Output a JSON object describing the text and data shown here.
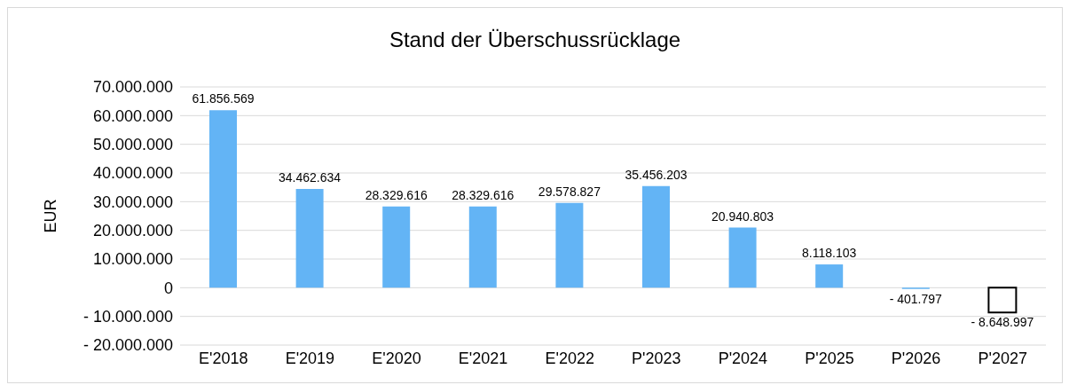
{
  "chart_data": {
    "type": "bar",
    "title": "Stand der Überschussrücklage",
    "ylabel": "EUR",
    "categories": [
      "E'2018",
      "E'2019",
      "E'2020",
      "E'2021",
      "E'2022",
      "P'2023",
      "P'2024",
      "P'2025",
      "P'2026",
      "P'2027"
    ],
    "values": [
      61856569,
      34462634,
      28329616,
      28329616,
      29578827,
      35456203,
      20940803,
      8118103,
      -401797,
      -8648997
    ],
    "value_labels": [
      "61.856.569",
      "34.462.634",
      "28.329.616",
      "28.329.616",
      "29.578.827",
      "35.456.203",
      "20.940.803",
      "8.118.103",
      "- 401.797",
      "- 8.648.997"
    ],
    "colors": [
      "#63b4f5",
      "#63b4f5",
      "#63b4f5",
      "#63b4f5",
      "#63b4f5",
      "#63b4f5",
      "#63b4f5",
      "#63b4f5",
      "#63b4f5",
      "#ffffff"
    ],
    "ylim": [
      -20000000,
      70000000
    ],
    "yticks": [
      {
        "value": -20000000,
        "label": "- 20.000.000"
      },
      {
        "value": -10000000,
        "label": "- 10.000.000"
      },
      0,
      {
        "value": 10000000,
        "label": "10.000.000"
      },
      {
        "value": 20000000,
        "label": "20.000.000"
      },
      {
        "value": 30000000,
        "label": "30.000.000"
      },
      {
        "value": 40000000,
        "label": "40.000.000"
      },
      {
        "value": 50000000,
        "label": "50.000.000"
      },
      {
        "value": 60000000,
        "label": "60.000.000"
      },
      {
        "value": 70000000,
        "label": "70.000.000"
      }
    ],
    "grid": "y",
    "legend": false
  }
}
